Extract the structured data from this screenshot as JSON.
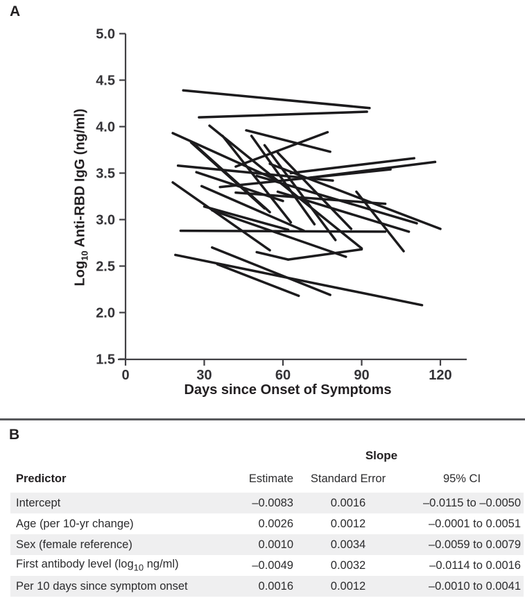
{
  "figure": {
    "panel_a_label": "A",
    "panel_b_label": "B"
  },
  "panel_a": {
    "y_title": {
      "pre": "Log",
      "sub": "10",
      "post": " Anti-RBD IgG (ng/ml)"
    },
    "x_title": "Days since Onset of Symptoms",
    "chart_data": {
      "type": "line",
      "description": "Spaghetti plot: each black line connects two serial anti-RBD IgG measurements for one participant",
      "title": "",
      "xlabel": "Days since Onset of Symptoms",
      "ylabel": "Log10 Anti-RBD IgG (ng/ml)",
      "xlim": [
        0,
        130
      ],
      "ylim": [
        1.5,
        5.0
      ],
      "x_ticks": [
        0,
        30,
        60,
        90,
        120
      ],
      "y_ticks": [
        1.5,
        2.0,
        2.5,
        3.0,
        3.5,
        4.0,
        4.5,
        5.0
      ],
      "grid": false,
      "legend": false,
      "series": [
        {
          "name": "p01",
          "x": [
            22,
            93
          ],
          "y": [
            4.39,
            4.2
          ]
        },
        {
          "name": "p02",
          "x": [
            28,
            92
          ],
          "y": [
            4.1,
            4.16
          ]
        },
        {
          "name": "p03",
          "x": [
            18,
            58
          ],
          "y": [
            3.93,
            3.42
          ]
        },
        {
          "name": "p04",
          "x": [
            32,
            90
          ],
          "y": [
            4.01,
            2.69
          ]
        },
        {
          "name": "p05",
          "x": [
            37,
            63
          ],
          "y": [
            3.9,
            2.97
          ]
        },
        {
          "name": "p06",
          "x": [
            46,
            78
          ],
          "y": [
            3.96,
            3.73
          ]
        },
        {
          "name": "p07",
          "x": [
            42,
            77
          ],
          "y": [
            3.57,
            3.94
          ]
        },
        {
          "name": "p08",
          "x": [
            25,
            53
          ],
          "y": [
            3.83,
            3.12
          ]
        },
        {
          "name": "p09",
          "x": [
            27,
            55
          ],
          "y": [
            3.79,
            3.08
          ]
        },
        {
          "name": "p10",
          "x": [
            20,
            79
          ],
          "y": [
            3.58,
            3.42
          ]
        },
        {
          "name": "p11",
          "x": [
            18,
            55
          ],
          "y": [
            3.4,
            2.67
          ]
        },
        {
          "name": "p12",
          "x": [
            27,
            60
          ],
          "y": [
            3.51,
            3.2
          ]
        },
        {
          "name": "p13",
          "x": [
            29,
            68
          ],
          "y": [
            3.36,
            2.88
          ]
        },
        {
          "name": "p14",
          "x": [
            30,
            62
          ],
          "y": [
            3.14,
            2.89
          ]
        },
        {
          "name": "p15",
          "x": [
            33,
            84
          ],
          "y": [
            3.1,
            2.6
          ]
        },
        {
          "name": "p16",
          "x": [
            36,
            101
          ],
          "y": [
            3.35,
            3.54
          ]
        },
        {
          "name": "p17",
          "x": [
            42,
            99
          ],
          "y": [
            3.29,
            3.17
          ]
        },
        {
          "name": "p18",
          "x": [
            50,
            111
          ],
          "y": [
            3.47,
            2.96
          ]
        },
        {
          "name": "p19",
          "x": [
            55,
            120
          ],
          "y": [
            3.6,
            2.9
          ]
        },
        {
          "name": "p20",
          "x": [
            63,
            110
          ],
          "y": [
            3.5,
            3.66
          ]
        },
        {
          "name": "p21",
          "x": [
            70,
            118
          ],
          "y": [
            3.45,
            3.62
          ]
        },
        {
          "name": "p22",
          "x": [
            58,
            108
          ],
          "y": [
            3.3,
            2.87
          ]
        },
        {
          "name": "p23",
          "x": [
            88,
            106
          ],
          "y": [
            3.3,
            2.66
          ]
        },
        {
          "name": "p24",
          "x": [
            48,
            72
          ],
          "y": [
            3.9,
            2.95
          ]
        },
        {
          "name": "p25",
          "x": [
            53,
            80
          ],
          "y": [
            3.8,
            2.78
          ]
        },
        {
          "name": "p26",
          "x": [
            58,
            86
          ],
          "y": [
            3.72,
            2.9
          ]
        },
        {
          "name": "p27",
          "x": [
            21,
            99
          ],
          "y": [
            2.88,
            2.87
          ]
        },
        {
          "name": "p28",
          "x": [
            19,
            113
          ],
          "y": [
            2.62,
            2.08
          ]
        },
        {
          "name": "p29",
          "x": [
            33,
            78
          ],
          "y": [
            2.7,
            2.19
          ]
        },
        {
          "name": "p30",
          "x": [
            35,
            66
          ],
          "y": [
            2.52,
            2.18
          ]
        },
        {
          "name": "p31",
          "x": [
            50,
            62
          ],
          "y": [
            2.65,
            2.57
          ]
        },
        {
          "name": "p32",
          "x": [
            62,
            90
          ],
          "y": [
            2.57,
            2.68
          ]
        }
      ]
    }
  },
  "panel_b": {
    "table": {
      "group_header": "Slope",
      "columns": [
        "Predictor",
        "Estimate",
        "Standard Error",
        "95% CI"
      ],
      "rows": [
        {
          "predictor": {
            "pre": "Intercept",
            "sub": "",
            "post": ""
          },
          "estimate": "–0.0083",
          "standard_error": "0.0016",
          "ci": "–0.0115 to –0.0050"
        },
        {
          "predictor": {
            "pre": "Age (per 10-yr change)",
            "sub": "",
            "post": ""
          },
          "estimate": "0.0026",
          "standard_error": "0.0012",
          "ci": "–0.0001 to 0.0051"
        },
        {
          "predictor": {
            "pre": "Sex (female reference)",
            "sub": "",
            "post": ""
          },
          "estimate": "0.0010",
          "standard_error": "0.0034",
          "ci": "–0.0059 to 0.0079"
        },
        {
          "predictor": {
            "pre": "First antibody level (log",
            "sub": "10",
            "post": " ng/ml)"
          },
          "estimate": "–0.0049",
          "standard_error": "0.0032",
          "ci": "–0.0114 to 0.0016"
        },
        {
          "predictor": {
            "pre": "Per 10 days since symptom onset",
            "sub": "",
            "post": ""
          },
          "estimate": "0.0016",
          "standard_error": "0.0012",
          "ci": "–0.0010 to 0.0041"
        }
      ]
    }
  },
  "colors": {
    "line": "#1c1b1d",
    "axis": "#414044",
    "tick_text": "#343337",
    "row_shade": "#efeff0",
    "divider": "#57585c",
    "background": "#ffffff"
  }
}
